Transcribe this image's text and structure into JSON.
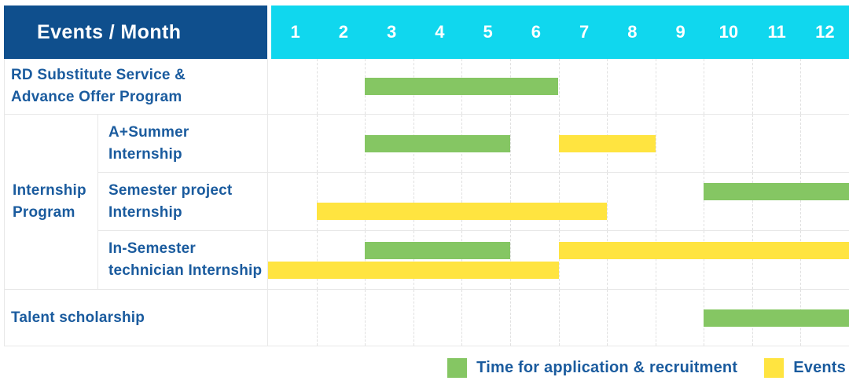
{
  "colors": {
    "header_bg": "#0f4f8d",
    "month_header_bg": "#10d7ee",
    "green": "#85c663",
    "yellow": "#ffe440",
    "label_text": "#1a5b9e"
  },
  "header": {
    "title": "Events / Month",
    "months": [
      "1",
      "2",
      "3",
      "4",
      "5",
      "6",
      "7",
      "8",
      "9",
      "10",
      "11",
      "12"
    ]
  },
  "table": {
    "group_label_lines": [
      "Internship",
      "Program"
    ],
    "rows": [
      {
        "label_lines": [
          "RD Substitute Service &",
          "Advance Offer Program"
        ],
        "lines": [
          [
            {
              "color": "green",
              "start": 3,
              "end": 6
            }
          ]
        ]
      },
      {
        "label_lines": [
          "A+Summer",
          "Internship"
        ],
        "lines": [
          [
            {
              "color": "green",
              "start": 3,
              "end": 5
            },
            {
              "color": "yellow",
              "start": 7,
              "end": 8
            }
          ]
        ]
      },
      {
        "label_lines": [
          "Semester project",
          "Internship"
        ],
        "lines": [
          [
            {
              "color": "green",
              "start": 10,
              "end": 12
            }
          ],
          [
            {
              "color": "yellow",
              "start": 2,
              "end": 7
            }
          ]
        ]
      },
      {
        "label_lines": [
          "In-Semester",
          "technician Internship"
        ],
        "lines": [
          [
            {
              "color": "green",
              "start": 3,
              "end": 5
            },
            {
              "color": "yellow",
              "start": 7,
              "end": 12
            }
          ],
          [
            {
              "color": "yellow",
              "start": 1,
              "end": 6
            }
          ]
        ]
      },
      {
        "label_lines": [
          "Talent scholarship"
        ],
        "lines": [
          [
            {
              "color": "green",
              "start": 10,
              "end": 12
            }
          ]
        ]
      }
    ]
  },
  "legend": {
    "items": [
      {
        "label": "Time for application & recruitment",
        "color_key": "green"
      },
      {
        "label": "Events",
        "color_key": "yellow"
      }
    ]
  },
  "chart_data": {
    "type": "gantt",
    "title": "Events / Month",
    "x_axis": {
      "unit": "month",
      "ticks": [
        1,
        2,
        3,
        4,
        5,
        6,
        7,
        8,
        9,
        10,
        11,
        12
      ]
    },
    "legend_position": "bottom-right",
    "grid": true,
    "series_legend": [
      {
        "name": "Time for application & recruitment",
        "color": "#85c663"
      },
      {
        "name": "Events",
        "color": "#ffe440"
      }
    ],
    "tasks": [
      {
        "name": "RD Substitute Service & Advance Offer Program",
        "group": null,
        "bars": [
          {
            "series": "Time for application & recruitment",
            "start_month": 3,
            "end_month": 6
          }
        ]
      },
      {
        "name": "A+Summer Internship",
        "group": "Internship Program",
        "bars": [
          {
            "series": "Time for application & recruitment",
            "start_month": 3,
            "end_month": 5
          },
          {
            "series": "Events",
            "start_month": 7,
            "end_month": 8
          }
        ]
      },
      {
        "name": "Semester project Internship",
        "group": "Internship Program",
        "bars": [
          {
            "series": "Time for application & recruitment",
            "start_month": 10,
            "end_month": 12
          },
          {
            "series": "Events",
            "start_month": 2,
            "end_month": 7
          }
        ]
      },
      {
        "name": "In-Semester technician Internship",
        "group": "Internship Program",
        "bars": [
          {
            "series": "Time for application & recruitment",
            "start_month": 3,
            "end_month": 5
          },
          {
            "series": "Events",
            "start_month": 7,
            "end_month": 12
          },
          {
            "series": "Events",
            "start_month": 1,
            "end_month": 6
          }
        ]
      },
      {
        "name": "Talent scholarship",
        "group": null,
        "bars": [
          {
            "series": "Time for application & recruitment",
            "start_month": 10,
            "end_month": 12
          }
        ]
      }
    ]
  }
}
